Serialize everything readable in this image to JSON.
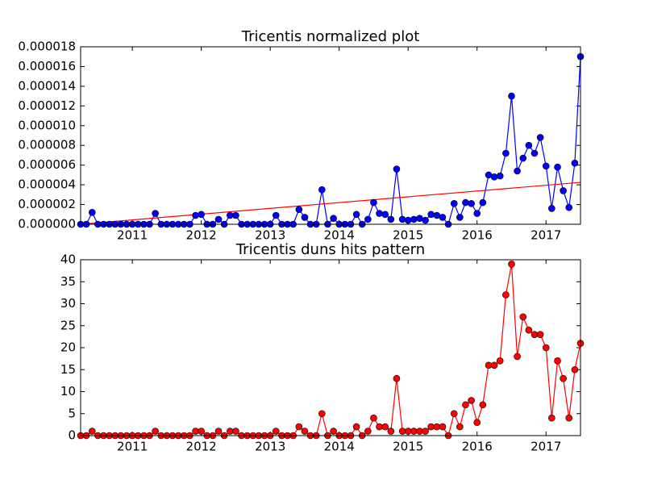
{
  "chart_data": [
    {
      "type": "line",
      "title": "Tricentis normalized plot",
      "x": [
        2010.25,
        2010.333,
        2010.417,
        2010.5,
        2010.583,
        2010.667,
        2010.75,
        2010.833,
        2010.917,
        2011,
        2011.083,
        2011.167,
        2011.25,
        2011.333,
        2011.417,
        2011.5,
        2011.583,
        2011.667,
        2011.75,
        2011.833,
        2011.917,
        2012,
        2012.083,
        2012.167,
        2012.25,
        2012.333,
        2012.417,
        2012.5,
        2012.583,
        2012.667,
        2012.75,
        2012.833,
        2012.917,
        2013,
        2013.083,
        2013.167,
        2013.25,
        2013.333,
        2013.417,
        2013.5,
        2013.583,
        2013.667,
        2013.75,
        2013.833,
        2013.917,
        2014,
        2014.083,
        2014.167,
        2014.25,
        2014.333,
        2014.417,
        2014.5,
        2014.583,
        2014.667,
        2014.75,
        2014.833,
        2014.917,
        2015,
        2015.083,
        2015.167,
        2015.25,
        2015.333,
        2015.417,
        2015.5,
        2015.583,
        2015.667,
        2015.75,
        2015.833,
        2015.917,
        2016,
        2016.083,
        2016.167,
        2016.25,
        2016.333,
        2016.417,
        2016.5,
        2016.583,
        2016.667,
        2016.75,
        2016.833,
        2016.917,
        2017,
        2017.083,
        2017.167,
        2017.25,
        2017.333,
        2017.417,
        2017.5
      ],
      "series": [
        {
          "color": "#0000ff",
          "values": [
            0,
            0,
            1.2e-06,
            0,
            0,
            0,
            0,
            0,
            0,
            0,
            0,
            0,
            0,
            1.1e-06,
            0,
            0,
            0,
            0,
            0,
            0,
            9e-07,
            1e-06,
            0,
            0,
            5e-07,
            0,
            9e-07,
            9e-07,
            0,
            0,
            0,
            0,
            0,
            0,
            9e-07,
            0,
            0,
            0,
            1.5e-06,
            7e-07,
            0,
            0,
            3.5e-06,
            0,
            6e-07,
            0,
            0,
            0,
            1e-06,
            0,
            5e-07,
            2.2e-06,
            1.1e-06,
            1e-06,
            5e-07,
            5.6e-06,
            5e-07,
            4e-07,
            5e-07,
            6e-07,
            4e-07,
            1e-06,
            9e-07,
            7e-07,
            0,
            2.1e-06,
            7e-07,
            2.2e-06,
            2.1e-06,
            1.1e-06,
            2.2e-06,
            5e-06,
            4.8e-06,
            4.9e-06,
            7.2e-06,
            1.3e-05,
            5.4e-06,
            6.7e-06,
            8e-06,
            7.2e-06,
            8.8e-06,
            5.9e-06,
            1.6e-06,
            5.8e-06,
            3.4e-06,
            1.7e-06,
            6.2e-06,
            1.7e-05
          ]
        }
      ],
      "fit_line": {
        "color": "#ff0000",
        "x": [
          2010.25,
          2017.5
        ],
        "values": [
          0,
          4.25e-06
        ]
      },
      "xlim": [
        2010.25,
        2017.5
      ],
      "xticks": [
        2011,
        2012,
        2013,
        2014,
        2015,
        2016,
        2017
      ],
      "ylim": [
        0,
        1.8e-05
      ],
      "yticks": [
        {
          "value": 0,
          "label": "0.000000"
        },
        {
          "value": 2e-06,
          "label": "0.000002"
        },
        {
          "value": 4e-06,
          "label": "0.000004"
        },
        {
          "value": 6e-06,
          "label": "0.000006"
        },
        {
          "value": 8e-06,
          "label": "0.000008"
        },
        {
          "value": 1e-05,
          "label": "0.000010"
        },
        {
          "value": 1.2e-05,
          "label": "0.000012"
        },
        {
          "value": 1.4e-05,
          "label": "0.000014"
        },
        {
          "value": 1.6e-05,
          "label": "0.000016"
        },
        {
          "value": 1.8e-05,
          "label": "0.000018"
        }
      ]
    },
    {
      "type": "line",
      "title": "Tricentis duns hits pattern",
      "x": [
        2010.25,
        2010.333,
        2010.417,
        2010.5,
        2010.583,
        2010.667,
        2010.75,
        2010.833,
        2010.917,
        2011,
        2011.083,
        2011.167,
        2011.25,
        2011.333,
        2011.417,
        2011.5,
        2011.583,
        2011.667,
        2011.75,
        2011.833,
        2011.917,
        2012,
        2012.083,
        2012.167,
        2012.25,
        2012.333,
        2012.417,
        2012.5,
        2012.583,
        2012.667,
        2012.75,
        2012.833,
        2012.917,
        2013,
        2013.083,
        2013.167,
        2013.25,
        2013.333,
        2013.417,
        2013.5,
        2013.583,
        2013.667,
        2013.75,
        2013.833,
        2013.917,
        2014,
        2014.083,
        2014.167,
        2014.25,
        2014.333,
        2014.417,
        2014.5,
        2014.583,
        2014.667,
        2014.75,
        2014.833,
        2014.917,
        2015,
        2015.083,
        2015.167,
        2015.25,
        2015.333,
        2015.417,
        2015.5,
        2015.583,
        2015.667,
        2015.75,
        2015.833,
        2015.917,
        2016,
        2016.083,
        2016.167,
        2016.25,
        2016.333,
        2016.417,
        2016.5,
        2016.583,
        2016.667,
        2016.75,
        2016.833,
        2016.917,
        2017,
        2017.083,
        2017.167,
        2017.25,
        2017.333,
        2017.417,
        2017.5
      ],
      "series": [
        {
          "color": "#ff0000",
          "values": [
            0,
            0,
            1,
            0,
            0,
            0,
            0,
            0,
            0,
            0,
            0,
            0,
            0,
            1,
            0,
            0,
            0,
            0,
            0,
            0,
            1,
            1,
            0,
            0,
            1,
            0,
            1,
            1,
            0,
            0,
            0,
            0,
            0,
            0,
            1,
            0,
            0,
            0,
            2,
            1,
            0,
            0,
            5,
            0,
            1,
            0,
            0,
            0,
            2,
            0,
            1,
            4,
            2,
            2,
            1,
            13,
            1,
            1,
            1,
            1,
            1,
            2,
            2,
            2,
            0,
            5,
            2,
            7,
            8,
            3,
            7,
            16,
            16,
            17,
            32,
            39,
            18,
            27,
            24,
            23,
            23,
            20,
            4,
            17,
            13,
            4,
            15,
            21
          ]
        }
      ],
      "xlim": [
        2010.25,
        2017.5
      ],
      "xticks": [
        2011,
        2012,
        2013,
        2014,
        2015,
        2016,
        2017
      ],
      "ylim": [
        0,
        40
      ],
      "yticks": [
        0,
        5,
        10,
        15,
        20,
        25,
        30,
        35,
        40
      ]
    }
  ]
}
